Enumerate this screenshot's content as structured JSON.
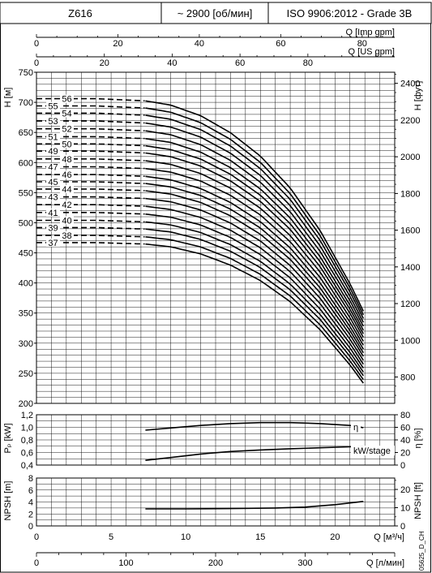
{
  "header": {
    "model": "Z616",
    "speed": "~ 2900 [об/мин]",
    "standard": "ISO 9906:2012 - Grade 3B"
  },
  "side_code": "05625_D_CH",
  "chart_data": [
    {
      "type": "line",
      "name": "head",
      "x_axis_main": {
        "label": "Q [м³/ч]",
        "range": [
          0,
          24
        ],
        "ticks": [
          0,
          5,
          10,
          15,
          20
        ]
      },
      "x_axis_lpm": {
        "label": "Q [л/мин]",
        "range": [
          0,
          400
        ],
        "ticks": [
          0,
          100,
          200,
          300
        ]
      },
      "x_axis_imp": {
        "label": "Q [Imp gpm]",
        "range": [
          0,
          88
        ],
        "ticks": [
          0,
          20,
          40,
          60,
          80
        ]
      },
      "x_axis_us": {
        "label": "Q [US gpm]",
        "range": [
          0,
          105.6
        ],
        "ticks": [
          0,
          20,
          40,
          60,
          80
        ]
      },
      "y_axis_left": {
        "label": "H [м]",
        "range": [
          200,
          750
        ],
        "ticks": [
          200,
          250,
          300,
          350,
          400,
          450,
          500,
          550,
          600,
          650,
          700,
          750
        ]
      },
      "y_axis_right": {
        "label": "H [фут]",
        "range": [
          656.2,
          2460.6
        ],
        "ticks": [
          800,
          1000,
          1200,
          1400,
          1600,
          1800,
          2000,
          2200,
          2400
        ]
      },
      "curve_shape": {
        "dashed_until_q": 7.3,
        "end_q": 21.9,
        "x": [
          0,
          4,
          7.3,
          9,
          11,
          13,
          15,
          17,
          19,
          21,
          21.9
        ],
        "relative_head": [
          1.0,
          1.0,
          0.995,
          0.985,
          0.96,
          0.92,
          0.865,
          0.79,
          0.69,
          0.565,
          0.5
        ]
      },
      "series": [
        {
          "label": "37",
          "shutoff_head": 467
        },
        {
          "label": "38",
          "shutoff_head": 479
        },
        {
          "label": "39",
          "shutoff_head": 492
        },
        {
          "label": "40",
          "shutoff_head": 504
        },
        {
          "label": "41",
          "shutoff_head": 517
        },
        {
          "label": "42",
          "shutoff_head": 530
        },
        {
          "label": "43",
          "shutoff_head": 543
        },
        {
          "label": "44",
          "shutoff_head": 556
        },
        {
          "label": "45",
          "shutoff_head": 568
        },
        {
          "label": "46",
          "shutoff_head": 580
        },
        {
          "label": "47",
          "shutoff_head": 593
        },
        {
          "label": "48",
          "shutoff_head": 606
        },
        {
          "label": "49",
          "shutoff_head": 619
        },
        {
          "label": "50",
          "shutoff_head": 631
        },
        {
          "label": "51",
          "shutoff_head": 643
        },
        {
          "label": "52",
          "shutoff_head": 656
        },
        {
          "label": "53",
          "shutoff_head": 669
        },
        {
          "label": "54",
          "shutoff_head": 682
        },
        {
          "label": "55",
          "shutoff_head": 694
        },
        {
          "label": "56",
          "shutoff_head": 706
        }
      ]
    },
    {
      "type": "line",
      "name": "power_efficiency",
      "y_axis_left": {
        "label": "Pₚ [kW]",
        "range": [
          0.4,
          1.2
        ],
        "ticks": [
          "0,4",
          "0,6",
          "0,8",
          "1,0",
          "1,2"
        ]
      },
      "y_axis_right": {
        "label": "η [%]",
        "range": [
          0,
          80
        ],
        "ticks": [
          0,
          20,
          40,
          60,
          80
        ]
      },
      "series": [
        {
          "name": "η",
          "axis": "right",
          "x": [
            7.3,
            9,
            11,
            13,
            15,
            17,
            19,
            21,
            21.9
          ],
          "values": [
            55.5,
            59,
            63,
            66,
            67.5,
            67.5,
            66,
            63,
            59.5
          ]
        },
        {
          "name": "kW/stage",
          "axis": "left",
          "x": [
            7.3,
            9,
            11,
            13,
            15,
            17,
            19,
            21,
            21.9
          ],
          "values": [
            0.475,
            0.52,
            0.575,
            0.615,
            0.64,
            0.66,
            0.675,
            0.69,
            0.695
          ]
        }
      ]
    },
    {
      "type": "line",
      "name": "npsh",
      "y_axis_left": {
        "label": "NPSH [m]",
        "range": [
          0,
          8
        ],
        "ticks": [
          0,
          2,
          4,
          6,
          8
        ]
      },
      "y_axis_right": {
        "label": "NPSH [ft]",
        "range": [
          0,
          26.25
        ],
        "ticks": [
          0,
          10,
          20
        ]
      },
      "series": [
        {
          "name": "NPSH",
          "x": [
            7.3,
            10,
            13,
            16,
            18,
            20,
            21.9
          ],
          "values": [
            2.85,
            2.85,
            2.9,
            3.0,
            3.15,
            3.55,
            4.1
          ]
        }
      ]
    }
  ]
}
